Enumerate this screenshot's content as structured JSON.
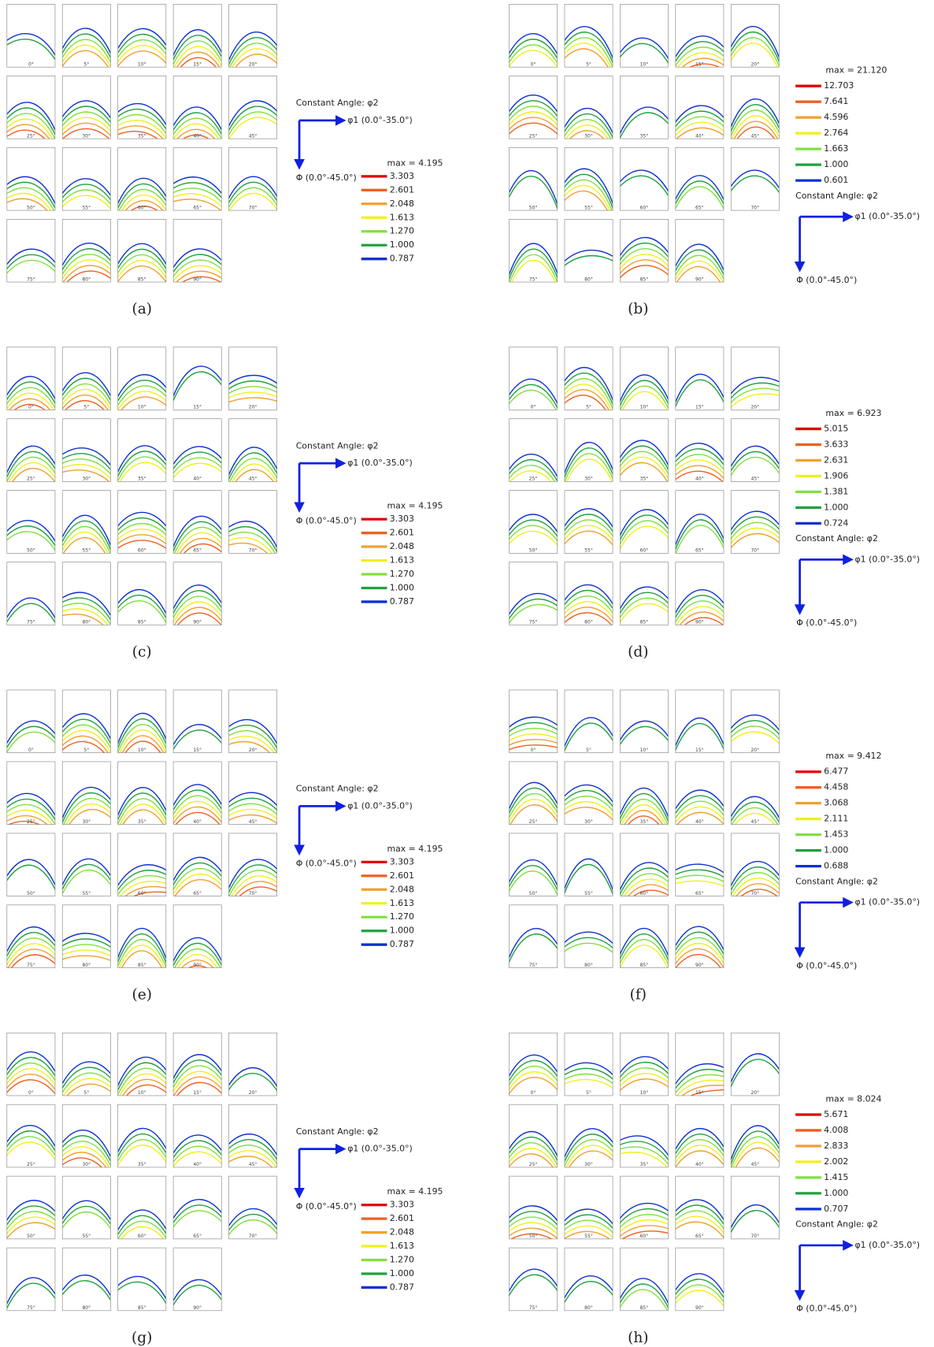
{
  "angles": [
    "0°",
    "5°",
    "10°",
    "15°",
    "20°",
    "25°",
    "30°",
    "35°",
    "40°",
    "45°",
    "50°",
    "55°",
    "60°",
    "65°",
    "70°",
    "75°",
    "80°",
    "85°",
    "90°"
  ],
  "level_colors": [
    "#e00000",
    "#f06020",
    "#f0a030",
    "#f0f020",
    "#80e040",
    "#20a040",
    "#1030d0"
  ],
  "panels": [
    {
      "label": "(a)",
      "max": "max = 4.195",
      "levels": [
        "3.303",
        "2.601",
        "2.048",
        "1.613",
        "1.270",
        "1.000",
        "0.787"
      ],
      "constant": "Constant Angle: φ2",
      "x_axis": "φ1 (0.0°-35.0°)",
      "y_axis": "Φ (0.0°-45.0°)"
    },
    {
      "label": "(b)",
      "max": "max = 21.120",
      "levels": [
        "12.703",
        "7.641",
        "4.596",
        "2.764",
        "1.663",
        "1.000",
        "0.601"
      ],
      "constant": "Constant Angle: φ2",
      "x_axis": "φ1 (0.0°-35.0°)",
      "y_axis": "Φ (0.0°-45.0°)"
    },
    {
      "label": "(c)",
      "max": "max = 4.195",
      "levels": [
        "3.303",
        "2.601",
        "2.048",
        "1.613",
        "1.270",
        "1.000",
        "0.787"
      ],
      "constant": "Constant Angle: φ2",
      "x_axis": "φ1 (0.0°-35.0°)",
      "y_axis": "Φ (0.0°-45.0°)"
    },
    {
      "label": "(d)",
      "max": "max = 6.923",
      "levels": [
        "5.015",
        "3.633",
        "2.631",
        "1.906",
        "1.381",
        "1.000",
        "0.724"
      ],
      "constant": "Constant Angle: φ2",
      "x_axis": "φ1 (0.0°-35.0°)",
      "y_axis": "Φ (0.0°-45.0°)"
    },
    {
      "label": "(e)",
      "max": "max = 4.195",
      "levels": [
        "3.303",
        "2.601",
        "2.048",
        "1.613",
        "1.270",
        "1.000",
        "0.787"
      ],
      "constant": "Constant Angle: φ2",
      "x_axis": "φ1 (0.0°-35.0°)",
      "y_axis": "Φ (0.0°-45.0°)"
    },
    {
      "label": "(f)",
      "max": "max = 9.412",
      "levels": [
        "6.477",
        "4.458",
        "3.068",
        "2.111",
        "1.453",
        "1.000",
        "0.688"
      ],
      "constant": "Constant Angle: φ2",
      "x_axis": "φ1 (0.0°-35.0°)",
      "y_axis": "Φ (0.0°-45.0°)"
    },
    {
      "label": "(g)",
      "max": "max = 4.195",
      "levels": [
        "3.303",
        "2.601",
        "2.048",
        "1.613",
        "1.270",
        "1.000",
        "0.787"
      ],
      "constant": "Constant Angle: φ2",
      "x_axis": "φ1 (0.0°-35.0°)",
      "y_axis": "Φ (0.0°-45.0°)"
    },
    {
      "label": "(h)",
      "max": "max = 8.024",
      "levels": [
        "5.671",
        "4.008",
        "2.833",
        "2.002",
        "1.415",
        "1.000",
        "0.707"
      ],
      "constant": "Constant Angle: φ2",
      "x_axis": "φ1 (0.0°-35.0°)",
      "y_axis": "Φ (0.0°-45.0°)"
    }
  ]
}
